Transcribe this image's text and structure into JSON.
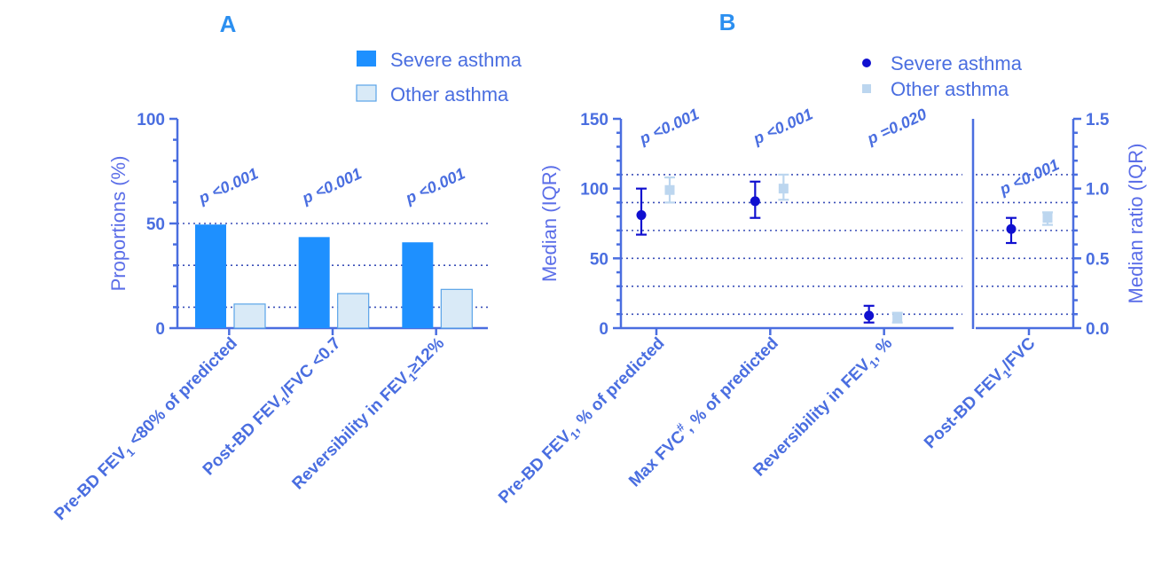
{
  "colors": {
    "severe_bar": "#1e90ff",
    "other_bar": "#d9eaf7",
    "other_bar_stroke": "#5aa4e8",
    "severe_point": "#1010d0",
    "other_point": "#bcd6ef",
    "axis": "#4a6ee0"
  },
  "chart_data": [
    {
      "panel": "A",
      "type": "bar",
      "ylabel": "Proportions (%)",
      "ylim": [
        0,
        100
      ],
      "yticks": [
        0,
        50,
        100
      ],
      "grid_y": [
        10,
        30,
        50
      ],
      "legend": {
        "placement": "top-right",
        "entries": [
          "Severe asthma",
          "Other asthma"
        ]
      },
      "categories": [
        {
          "pre": "Pre-BD FEV",
          "sub": "1",
          "post": " <80% of predicted"
        },
        {
          "pre": "Post-BD FEV",
          "sub": "1",
          "post": "/FVC <0.7"
        },
        {
          "pre": "Reversibility in FEV",
          "sub": "1",
          "post": "≥12%"
        }
      ],
      "series": [
        {
          "name": "Severe asthma",
          "values": [
            49.5,
            43.5,
            41
          ]
        },
        {
          "name": "Other asthma",
          "values": [
            11.5,
            16.5,
            18.5
          ]
        }
      ],
      "annotations": [
        "p <0.001",
        "p <0.001",
        "p <0.001"
      ]
    },
    {
      "panel": "B",
      "type": "scatter",
      "ylabel": "Median (IQR)",
      "ylim": [
        0,
        150
      ],
      "yticks": [
        0,
        50,
        100,
        150
      ],
      "grid_y": [
        10,
        30,
        50,
        70,
        90,
        110
      ],
      "legend": {
        "placement": "top-right",
        "entries": [
          "Severe asthma",
          "Other asthma"
        ]
      },
      "categories": [
        {
          "pre": "Pre-BD FEV",
          "sub": "1",
          "post": ", % of predicted"
        },
        {
          "pre": "Max FVC",
          "sup": "#",
          "post": ", % of predicted"
        },
        {
          "pre": "Reversibility in FEV",
          "sub": "1",
          "post": ", %"
        }
      ],
      "series": [
        {
          "name": "Severe asthma",
          "median": [
            81,
            91,
            9
          ],
          "q1": [
            67,
            79,
            4
          ],
          "q3": [
            100,
            105,
            16
          ]
        },
        {
          "name": "Other asthma",
          "median": [
            99,
            100,
            7
          ],
          "q1": [
            90,
            92,
            4
          ],
          "q3": [
            108,
            110,
            11
          ]
        }
      ],
      "annotations": [
        "p <0.001",
        "p <0.001",
        "p =0.020"
      ]
    },
    {
      "panel": "B-right",
      "type": "scatter",
      "ylabel": "Median ratio (IQR)",
      "ylim": [
        0,
        1.5
      ],
      "yticks": [
        "0.0",
        "0.5",
        "1.0",
        "1.5"
      ],
      "grid_y": [
        0.1,
        0.3,
        0.5,
        0.7,
        0.9,
        1.1
      ],
      "categories": [
        {
          "pre": "Post-BD FEV",
          "sub": "1",
          "post": "/FVC"
        }
      ],
      "series": [
        {
          "name": "Severe asthma",
          "median": [
            0.71
          ],
          "q1": [
            0.61
          ],
          "q3": [
            0.79
          ]
        },
        {
          "name": "Other asthma",
          "median": [
            0.79
          ],
          "q1": [
            0.74
          ],
          "q3": [
            0.83
          ]
        }
      ],
      "annotations": [
        "p <0.001"
      ]
    }
  ]
}
